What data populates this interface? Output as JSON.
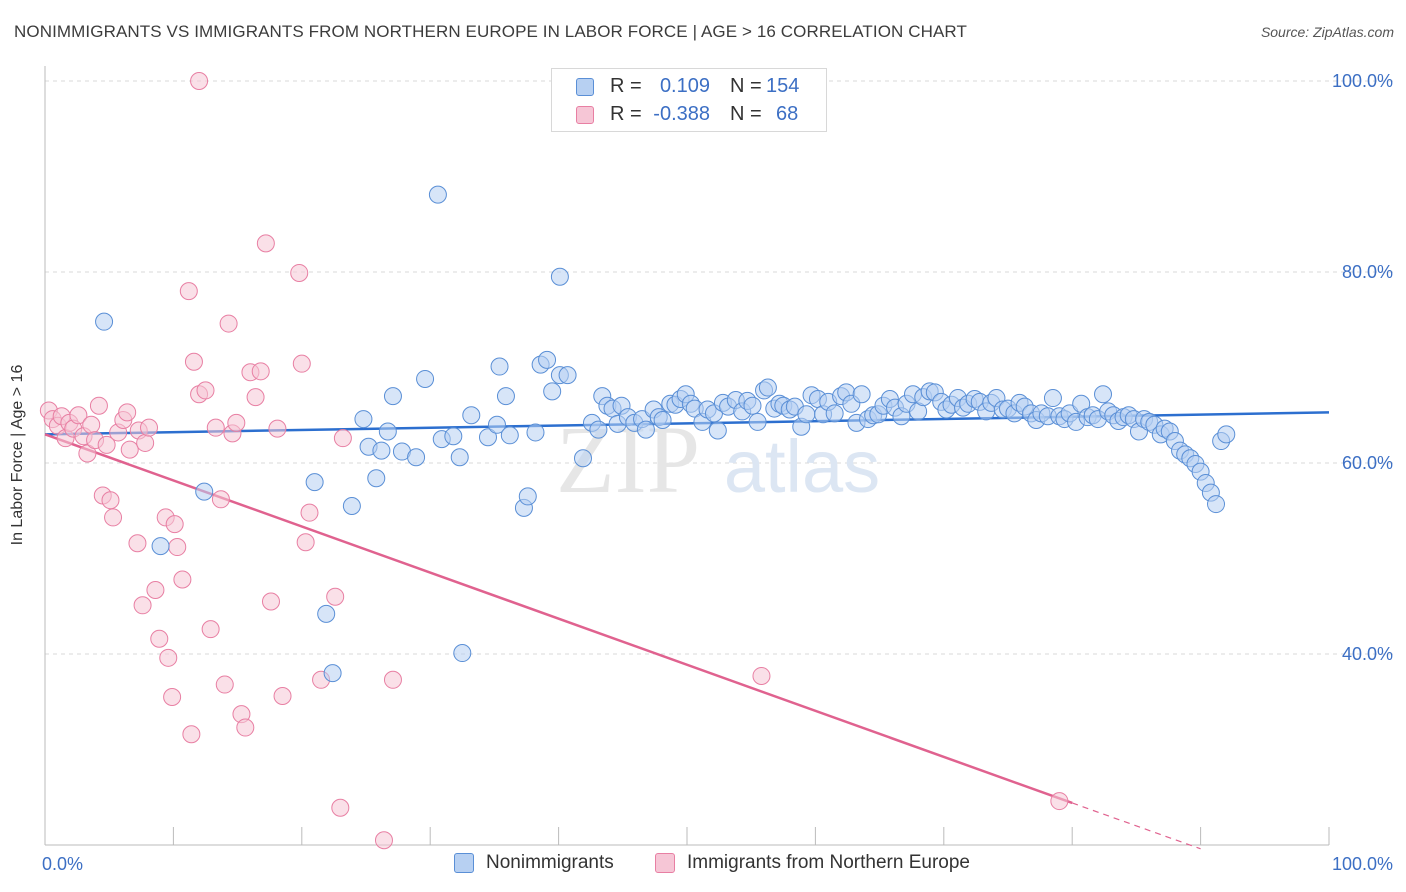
{
  "title": "NONIMMIGRANTS VS IMMIGRANTS FROM NORTHERN EUROPE IN LABOR FORCE | AGE > 16 CORRELATION CHART",
  "source": "Source: ZipAtlas.com",
  "watermark": {
    "zip": "ZIP",
    "atlas": "atlas"
  },
  "colors": {
    "blue": "#5a8fd6",
    "blue_fill": "#b7d0f2",
    "blue_line": "#2c6fcf",
    "pink": "#e87fa3",
    "pink_fill": "#f6c6d6",
    "pink_line": "#e0628f",
    "axis_text": "#3c6fc4",
    "grid": "#d9d9d9"
  },
  "stats": [
    {
      "series": "Nonimmigrants",
      "r_label": "R =",
      "r": "0.109",
      "n_label": "N =",
      "n": "154",
      "color": "blue"
    },
    {
      "series": "Immigrants from Northern Europe",
      "r_label": "R =",
      "r": "-0.388",
      "n_label": "N =",
      "n": "68",
      "color": "pink"
    }
  ],
  "chart_data": {
    "type": "scatter",
    "title": "NONIMMIGRANTS VS IMMIGRANTS FROM NORTHERN EUROPE IN LABOR FORCE | AGE > 16 CORRELATION CHART",
    "xlabel": "",
    "ylabel": "In Labor Force | Age > 16",
    "xlim": [
      0,
      100
    ],
    "ylim": [
      20,
      102
    ],
    "x_tick_labels": [
      "0.0%",
      "100.0%"
    ],
    "y_ticks": [
      40,
      60,
      80,
      100
    ],
    "y_tick_labels": [
      "40.0%",
      "60.0%",
      "80.0%",
      "100.0%"
    ],
    "grid": true,
    "legend_placement": "bottom",
    "series": [
      {
        "name": "Nonimmigrants",
        "color": "blue",
        "trend": {
          "x": [
            0,
            100
          ],
          "y": [
            63.0,
            65.3
          ]
        },
        "points": [
          [
            4.6,
            74.8
          ],
          [
            12.4,
            57.0
          ],
          [
            9.0,
            51.3
          ],
          [
            22.4,
            38.0
          ],
          [
            21.9,
            44.2
          ],
          [
            21.0,
            58.0
          ],
          [
            23.9,
            55.5
          ],
          [
            24.8,
            64.6
          ],
          [
            25.2,
            61.7
          ],
          [
            25.8,
            58.4
          ],
          [
            26.2,
            61.3
          ],
          [
            26.7,
            63.3
          ],
          [
            27.1,
            67.0
          ],
          [
            27.8,
            61.2
          ],
          [
            28.9,
            60.6
          ],
          [
            29.6,
            68.8
          ],
          [
            30.9,
            62.5
          ],
          [
            31.8,
            62.8
          ],
          [
            32.3,
            60.6
          ],
          [
            32.5,
            40.1
          ],
          [
            33.2,
            65.0
          ],
          [
            34.5,
            62.7
          ],
          [
            35.4,
            70.1
          ],
          [
            35.2,
            64.0
          ],
          [
            35.9,
            67.0
          ],
          [
            36.2,
            62.9
          ],
          [
            37.3,
            55.3
          ],
          [
            37.6,
            56.5
          ],
          [
            38.2,
            63.2
          ],
          [
            38.6,
            70.3
          ],
          [
            39.1,
            70.8
          ],
          [
            39.5,
            67.5
          ],
          [
            40.1,
            69.2
          ],
          [
            40.7,
            69.2
          ],
          [
            30.6,
            88.1
          ],
          [
            40.1,
            79.5
          ],
          [
            41.9,
            60.5
          ],
          [
            42.6,
            64.2
          ],
          [
            43.1,
            63.5
          ],
          [
            43.4,
            67.0
          ],
          [
            43.8,
            66.0
          ],
          [
            44.2,
            65.7
          ],
          [
            44.6,
            64.1
          ],
          [
            44.9,
            66.0
          ],
          [
            45.4,
            64.8
          ],
          [
            45.9,
            64.2
          ],
          [
            46.5,
            64.6
          ],
          [
            46.8,
            63.5
          ],
          [
            47.4,
            65.6
          ],
          [
            47.8,
            64.8
          ],
          [
            48.1,
            64.5
          ],
          [
            48.7,
            66.2
          ],
          [
            49.1,
            66.1
          ],
          [
            49.5,
            66.7
          ],
          [
            49.9,
            67.2
          ],
          [
            50.3,
            66.2
          ],
          [
            50.6,
            65.7
          ],
          [
            51.2,
            64.3
          ],
          [
            51.6,
            65.6
          ],
          [
            52.1,
            65.2
          ],
          [
            52.4,
            63.4
          ],
          [
            52.8,
            66.3
          ],
          [
            53.2,
            65.9
          ],
          [
            53.8,
            66.6
          ],
          [
            54.3,
            65.4
          ],
          [
            54.7,
            66.5
          ],
          [
            55.1,
            66.0
          ],
          [
            55.5,
            64.3
          ],
          [
            56.0,
            67.6
          ],
          [
            56.3,
            67.9
          ],
          [
            56.8,
            65.7
          ],
          [
            57.2,
            66.2
          ],
          [
            57.5,
            66.0
          ],
          [
            58.0,
            65.6
          ],
          [
            58.4,
            65.9
          ],
          [
            58.9,
            63.8
          ],
          [
            59.3,
            65.1
          ],
          [
            59.7,
            67.1
          ],
          [
            60.2,
            66.7
          ],
          [
            60.6,
            65.1
          ],
          [
            61.0,
            66.4
          ],
          [
            61.5,
            65.2
          ],
          [
            62.0,
            67.0
          ],
          [
            62.4,
            67.4
          ],
          [
            62.8,
            66.2
          ],
          [
            63.2,
            64.2
          ],
          [
            63.6,
            67.2
          ],
          [
            64.1,
            64.6
          ],
          [
            64.5,
            65.0
          ],
          [
            64.9,
            65.1
          ],
          [
            65.3,
            66.0
          ],
          [
            65.8,
            66.7
          ],
          [
            66.2,
            65.8
          ],
          [
            66.7,
            64.9
          ],
          [
            67.1,
            66.2
          ],
          [
            67.6,
            67.2
          ],
          [
            68.0,
            65.4
          ],
          [
            68.4,
            66.9
          ],
          [
            68.9,
            67.5
          ],
          [
            69.3,
            67.4
          ],
          [
            69.8,
            66.4
          ],
          [
            70.2,
            65.6
          ],
          [
            70.6,
            66.1
          ],
          [
            71.1,
            66.8
          ],
          [
            71.5,
            65.8
          ],
          [
            71.9,
            66.2
          ],
          [
            72.4,
            66.7
          ],
          [
            72.8,
            66.4
          ],
          [
            73.3,
            65.4
          ],
          [
            73.7,
            66.3
          ],
          [
            74.1,
            66.8
          ],
          [
            74.6,
            65.6
          ],
          [
            75.0,
            65.7
          ],
          [
            75.5,
            65.2
          ],
          [
            75.9,
            66.3
          ],
          [
            76.3,
            65.9
          ],
          [
            76.8,
            65.2
          ],
          [
            77.2,
            64.5
          ],
          [
            77.6,
            65.2
          ],
          [
            78.1,
            64.9
          ],
          [
            78.5,
            66.8
          ],
          [
            79.0,
            64.9
          ],
          [
            79.4,
            64.6
          ],
          [
            79.8,
            65.2
          ],
          [
            80.3,
            64.3
          ],
          [
            80.7,
            66.2
          ],
          [
            81.2,
            64.8
          ],
          [
            81.6,
            65.0
          ],
          [
            82.0,
            64.6
          ],
          [
            82.4,
            67.2
          ],
          [
            82.8,
            65.4
          ],
          [
            83.2,
            65.0
          ],
          [
            83.6,
            64.4
          ],
          [
            84.0,
            64.8
          ],
          [
            84.4,
            65.0
          ],
          [
            84.8,
            64.6
          ],
          [
            85.2,
            63.3
          ],
          [
            85.6,
            64.6
          ],
          [
            86.0,
            64.3
          ],
          [
            86.4,
            64.0
          ],
          [
            86.9,
            63.0
          ],
          [
            87.2,
            63.6
          ],
          [
            87.6,
            63.3
          ],
          [
            88.0,
            62.3
          ],
          [
            88.4,
            61.3
          ],
          [
            88.8,
            60.9
          ],
          [
            89.2,
            60.5
          ],
          [
            89.6,
            59.9
          ],
          [
            90.0,
            59.1
          ],
          [
            90.4,
            57.9
          ],
          [
            90.8,
            56.9
          ],
          [
            91.2,
            55.7
          ],
          [
            91.6,
            62.3
          ],
          [
            92.0,
            63.0
          ]
        ]
      },
      {
        "name": "Immigrants from Northern Europe",
        "color": "pink",
        "trend": {
          "x": [
            0,
            80
          ],
          "y": [
            63.0,
            24.4
          ]
        },
        "trend_dashed": {
          "x": [
            80,
            90
          ],
          "y": [
            24.4,
            19.6
          ]
        },
        "points": [
          [
            0.3,
            65.5
          ],
          [
            0.6,
            64.6
          ],
          [
            1.0,
            63.9
          ],
          [
            1.3,
            64.9
          ],
          [
            1.6,
            62.6
          ],
          [
            1.9,
            64.2
          ],
          [
            2.2,
            63.6
          ],
          [
            2.6,
            65.0
          ],
          [
            3.0,
            62.8
          ],
          [
            3.3,
            61.0
          ],
          [
            3.6,
            64.0
          ],
          [
            3.9,
            62.4
          ],
          [
            4.2,
            66.0
          ],
          [
            4.8,
            61.9
          ],
          [
            4.5,
            56.6
          ],
          [
            5.1,
            56.1
          ],
          [
            5.3,
            54.3
          ],
          [
            5.7,
            63.2
          ],
          [
            6.1,
            64.5
          ],
          [
            6.4,
            65.3
          ],
          [
            6.6,
            61.4
          ],
          [
            7.3,
            63.4
          ],
          [
            7.6,
            45.1
          ],
          [
            7.2,
            51.6
          ],
          [
            7.8,
            62.1
          ],
          [
            8.6,
            46.7
          ],
          [
            8.9,
            41.6
          ],
          [
            9.4,
            54.3
          ],
          [
            9.6,
            39.6
          ],
          [
            9.9,
            35.5
          ],
          [
            10.3,
            51.2
          ],
          [
            10.1,
            53.6
          ],
          [
            10.7,
            47.8
          ],
          [
            11.2,
            78.0
          ],
          [
            11.6,
            70.6
          ],
          [
            12.0,
            67.2
          ],
          [
            11.4,
            31.6
          ],
          [
            12.5,
            67.6
          ],
          [
            12.9,
            42.6
          ],
          [
            13.3,
            63.7
          ],
          [
            13.7,
            56.2
          ],
          [
            14.0,
            36.8
          ],
          [
            14.3,
            74.6
          ],
          [
            14.6,
            63.1
          ],
          [
            14.9,
            64.2
          ],
          [
            15.3,
            33.7
          ],
          [
            15.6,
            32.3
          ],
          [
            16.0,
            69.5
          ],
          [
            16.4,
            66.9
          ],
          [
            16.8,
            69.6
          ],
          [
            17.2,
            83.0
          ],
          [
            17.6,
            45.5
          ],
          [
            18.1,
            63.6
          ],
          [
            18.5,
            35.6
          ],
          [
            19.8,
            79.9
          ],
          [
            20.0,
            70.4
          ],
          [
            20.3,
            51.7
          ],
          [
            20.6,
            54.8
          ],
          [
            21.5,
            37.3
          ],
          [
            22.6,
            46.0
          ],
          [
            23.0,
            23.9
          ],
          [
            23.2,
            62.6
          ],
          [
            26.4,
            20.5
          ],
          [
            27.1,
            37.3
          ],
          [
            55.8,
            37.7
          ],
          [
            79.0,
            24.6
          ],
          [
            12.0,
            100.0
          ],
          [
            8.1,
            63.7
          ]
        ]
      }
    ]
  },
  "legend": [
    {
      "label": "Nonimmigrants",
      "color": "blue"
    },
    {
      "label": "Immigrants from Northern Europe",
      "color": "pink"
    }
  ]
}
